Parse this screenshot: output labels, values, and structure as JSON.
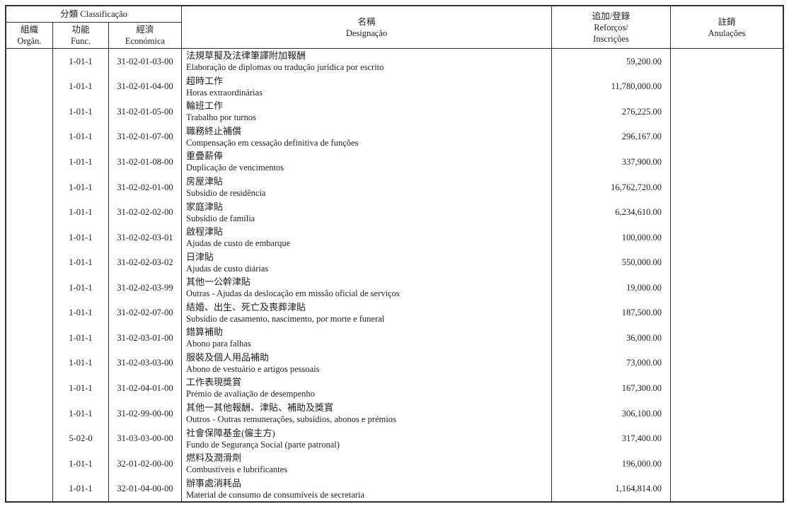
{
  "colors": {
    "background": "#ffffff",
    "border": "#2e2e2e",
    "text": "#1f1f1f"
  },
  "table": {
    "header": {
      "classificacao": "分類 Classificação",
      "organ_zh": "組織",
      "organ_pt": "Orgân.",
      "func_zh": "功能",
      "func_pt": "Func.",
      "econ_zh": "經濟",
      "econ_pt": "Económica",
      "designacao_zh": "名稱",
      "designacao_pt": "Designação",
      "reforcos_zh": "追加/登錄",
      "reforcos_pt1": "Reforços/",
      "reforcos_pt2": "Inscrições",
      "anulacoes_zh": "註銷",
      "anulacoes_pt": "Anulações"
    },
    "rows": [
      {
        "organ": "",
        "func": "1-01-1",
        "econ": "31-02-01-03-00",
        "designacao_zh": "法規草擬及法律筆譯附加報酬",
        "designacao_pt": "Elaboração de diplomas ou tradução jurídica por escrito",
        "reforcos": "59,200.00",
        "anulacoes": ""
      },
      {
        "organ": "",
        "func": "1-01-1",
        "econ": "31-02-01-04-00",
        "designacao_zh": "超時工作",
        "designacao_pt": "Horas extraordinárias",
        "reforcos": "11,780,000.00",
        "anulacoes": ""
      },
      {
        "organ": "",
        "func": "1-01-1",
        "econ": "31-02-01-05-00",
        "designacao_zh": "輪班工作",
        "designacao_pt": "Trabalho por turnos",
        "reforcos": "276,225.00",
        "anulacoes": ""
      },
      {
        "organ": "",
        "func": "1-01-1",
        "econ": "31-02-01-07-00",
        "designacao_zh": "職務終止補償",
        "designacao_pt": "Compensação em cessação definitiva de funções",
        "reforcos": "296,167.00",
        "anulacoes": ""
      },
      {
        "organ": "",
        "func": "1-01-1",
        "econ": "31-02-01-08-00",
        "designacao_zh": "重疊薪俸",
        "designacao_pt": "Duplicação de vencimentos",
        "reforcos": "337,900.00",
        "anulacoes": ""
      },
      {
        "organ": "",
        "func": "1-01-1",
        "econ": "31-02-02-01-00",
        "designacao_zh": "房屋津貼",
        "designacao_pt": "Subsídio de residência",
        "reforcos": "16,762,720.00",
        "anulacoes": ""
      },
      {
        "organ": "",
        "func": "1-01-1",
        "econ": "31-02-02-02-00",
        "designacao_zh": "家庭津貼",
        "designacao_pt": "Subsídio de família",
        "reforcos": "6,234,610.00",
        "anulacoes": ""
      },
      {
        "organ": "",
        "func": "1-01-1",
        "econ": "31-02-02-03-01",
        "designacao_zh": "啟程津貼",
        "designacao_pt": "Ajudas de custo de embarque",
        "reforcos": "100,000.00",
        "anulacoes": ""
      },
      {
        "organ": "",
        "func": "1-01-1",
        "econ": "31-02-02-03-02",
        "designacao_zh": "日津貼",
        "designacao_pt": "Ajudas de custo diárias",
        "reforcos": "550,000.00",
        "anulacoes": ""
      },
      {
        "organ": "",
        "func": "1-01-1",
        "econ": "31-02-02-03-99",
        "designacao_zh": "其他一公幹津貼",
        "designacao_pt": "Outras - Ajudas da deslocação em missão oficial de serviços",
        "reforcos": "19,000.00",
        "anulacoes": ""
      },
      {
        "organ": "",
        "func": "1-01-1",
        "econ": "31-02-02-07-00",
        "designacao_zh": "結婚、出生、死亡及喪葬津貼",
        "designacao_pt": "Subsídio de casamento, nascimento, por morte e funeral",
        "reforcos": "187,500.00",
        "anulacoes": ""
      },
      {
        "organ": "",
        "func": "1-01-1",
        "econ": "31-02-03-01-00",
        "designacao_zh": "錯算補助",
        "designacao_pt": "Abono para falhas",
        "reforcos": "36,000.00",
        "anulacoes": ""
      },
      {
        "organ": "",
        "func": "1-01-1",
        "econ": "31-02-03-03-00",
        "designacao_zh": "服裝及個人用品補助",
        "designacao_pt": "Abono de vestuário e artigos pessoais",
        "reforcos": "73,000.00",
        "anulacoes": ""
      },
      {
        "organ": "",
        "func": "1-01-1",
        "econ": "31-02-04-01-00",
        "designacao_zh": "工作表現獎賞",
        "designacao_pt": "Prémio de avaliação de desempenho",
        "reforcos": "167,300.00",
        "anulacoes": ""
      },
      {
        "organ": "",
        "func": "1-01-1",
        "econ": "31-02-99-00-00",
        "designacao_zh": "其他一其他報酬、津貼、補助及獎賞",
        "designacao_pt": "Outros - Outras remunerações, subsídios, abonos e prémios",
        "reforcos": "306,100.00",
        "anulacoes": ""
      },
      {
        "organ": "",
        "func": "5-02-0",
        "econ": "31-03-03-00-00",
        "designacao_zh": "社會保障基金(僱主方)",
        "designacao_pt": "Fundo de Segurança Social (parte patronal)",
        "reforcos": "317,400.00",
        "anulacoes": ""
      },
      {
        "organ": "",
        "func": "1-01-1",
        "econ": "32-01-02-00-00",
        "designacao_zh": "燃料及潤滑劑",
        "designacao_pt": "Combustíveis e lubrificantes",
        "reforcos": "196,000.00",
        "anulacoes": ""
      },
      {
        "organ": "",
        "func": "1-01-1",
        "econ": "32-01-04-00-00",
        "designacao_zh": "辦事處消耗品",
        "designacao_pt": "Material de consumo de consumíveis de secretaria",
        "reforcos": "1,164,814.00",
        "anulacoes": ""
      }
    ]
  }
}
